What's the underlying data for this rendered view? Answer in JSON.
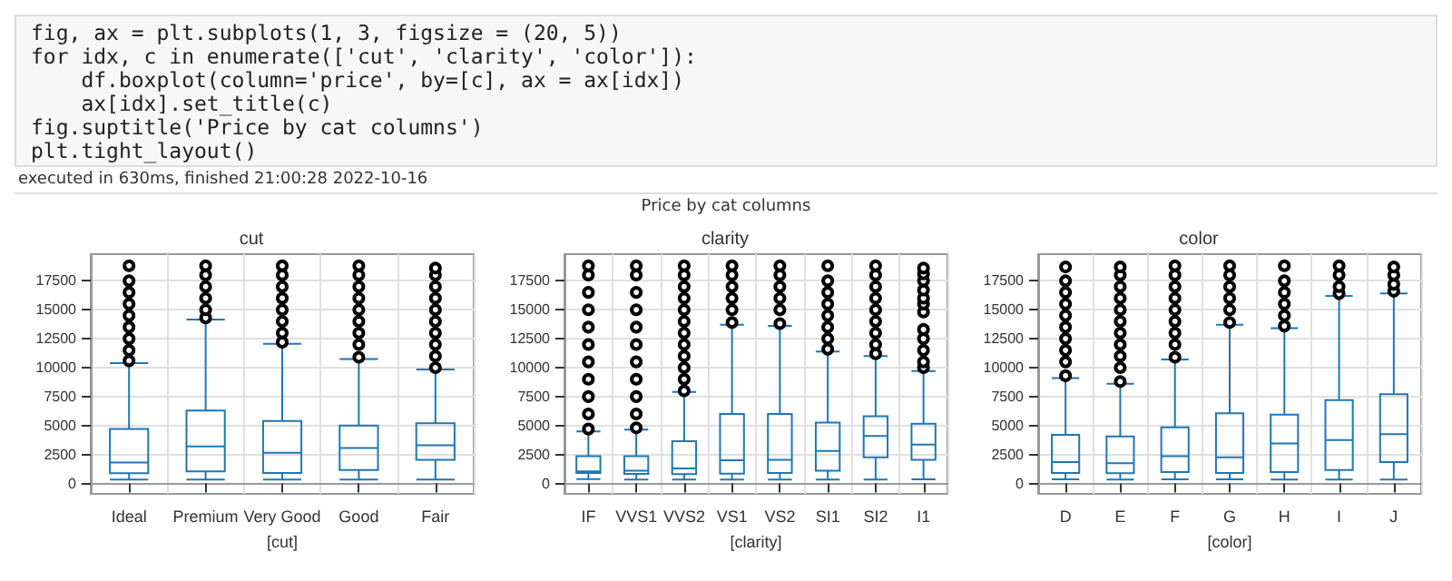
{
  "chart_data": [
    {
      "type": "other",
      "title": "Price by cat columns",
      "annotations": [
        "fig, ax = plt.subplots(1, 3, figsize = (20, 5))",
        "for idx, c in enumerate(['cut', 'clarity', 'color']):",
        "    df.boxplot(column='price', by=[c], ax = ax[idx])",
        "    ax[idx].set_title(c)",
        "fig.suptitle('Price by cat columns')",
        "plt.tight_layout()",
        "executed in 630ms, finished 21:00:28 2022-10-16"
      ]
    },
    {
      "type": "box",
      "title": "cut",
      "xlabel": "[cut]",
      "categories": [
        "Ideal",
        "Premium",
        "Very Good",
        "Good",
        "Fair"
      ],
      "ylim": [
        -900,
        19800
      ],
      "yticks": [
        0,
        2500,
        5000,
        7500,
        10000,
        12500,
        15000,
        17500
      ],
      "grid": true,
      "series": [
        {
          "color": "#1f77b4",
          "boxes": [
            {
              "low": 330,
              "q1": 880,
              "median": 1800,
              "q3": 4700,
              "high": 10400,
              "outliers": [
                10600,
                11500,
                12500,
                13500,
                14500,
                15500,
                16500,
                17500,
                18800
              ]
            },
            {
              "low": 330,
              "q1": 1050,
              "median": 3200,
              "q3": 6300,
              "high": 14150,
              "outliers": [
                14300,
                15000,
                16000,
                17000,
                18000,
                18800
              ]
            },
            {
              "low": 340,
              "q1": 900,
              "median": 2650,
              "q3": 5400,
              "high": 12050,
              "outliers": [
                12200,
                13000,
                14000,
                15000,
                16000,
                17000,
                18000,
                18800
              ]
            },
            {
              "low": 330,
              "q1": 1150,
              "median": 3050,
              "q3": 5000,
              "high": 10750,
              "outliers": [
                10900,
                12000,
                13000,
                14000,
                15000,
                16000,
                17000,
                18000,
                18800
              ]
            },
            {
              "low": 340,
              "q1": 2050,
              "median": 3300,
              "q3": 5200,
              "high": 9850,
              "outliers": [
                10000,
                11000,
                12000,
                13000,
                14000,
                15000,
                16000,
                17000,
                18000,
                18600
              ]
            }
          ]
        }
      ]
    },
    {
      "type": "box",
      "title": "clarity",
      "xlabel": "[clarity]",
      "categories": [
        "IF",
        "VVS1",
        "VVS2",
        "VS1",
        "VS2",
        "SI1",
        "SI2",
        "I1"
      ],
      "ylim": [
        -900,
        19800
      ],
      "yticks": [
        0,
        2500,
        5000,
        7500,
        10000,
        12500,
        15000,
        17500
      ],
      "grid": true,
      "series": [
        {
          "color": "#1f77b4",
          "boxes": [
            {
              "low": 370,
              "q1": 900,
              "median": 1050,
              "q3": 2350,
              "high": 4500,
              "outliers": [
                4700,
                6000,
                7500,
                9000,
                10500,
                12000,
                13500,
                15000,
                16500,
                18000,
                18800
              ]
            },
            {
              "low": 340,
              "q1": 820,
              "median": 1100,
              "q3": 2350,
              "high": 4650,
              "outliers": [
                4800,
                6000,
                7500,
                9000,
                10500,
                12000,
                13500,
                15000,
                16500,
                18000,
                18800
              ]
            },
            {
              "low": 340,
              "q1": 800,
              "median": 1300,
              "q3": 3650,
              "high": 7900,
              "outliers": [
                8000,
                9000,
                10000,
                11000,
                12000,
                13000,
                14000,
                15000,
                16000,
                17000,
                18000,
                18800
              ]
            },
            {
              "low": 330,
              "q1": 850,
              "median": 2000,
              "q3": 6000,
              "high": 13700,
              "outliers": [
                13900,
                15000,
                16000,
                17000,
                18000,
                18800
              ]
            },
            {
              "low": 330,
              "q1": 900,
              "median": 2050,
              "q3": 6000,
              "high": 13600,
              "outliers": [
                13800,
                15000,
                16000,
                17000,
                18000,
                18800
              ]
            },
            {
              "low": 330,
              "q1": 1100,
              "median": 2800,
              "q3": 5250,
              "high": 11400,
              "outliers": [
                11600,
                12500,
                13500,
                14500,
                15500,
                16500,
                17500,
                18800
              ]
            },
            {
              "low": 330,
              "q1": 2250,
              "median": 4100,
              "q3": 5800,
              "high": 11000,
              "outliers": [
                11200,
                12000,
                13000,
                14000,
                15000,
                16000,
                17000,
                18000,
                18800
              ]
            },
            {
              "low": 350,
              "q1": 2050,
              "median": 3350,
              "q3": 5150,
              "high": 9700,
              "outliers": [
                10000,
                10500,
                11500,
                12500,
                13300,
                14800,
                15500,
                16000,
                16700,
                17500,
                18100,
                18600
              ]
            }
          ]
        }
      ]
    },
    {
      "type": "box",
      "title": "color",
      "xlabel": "[color]",
      "categories": [
        "D",
        "E",
        "F",
        "G",
        "H",
        "I",
        "J"
      ],
      "ylim": [
        -900,
        19800
      ],
      "yticks": [
        0,
        2500,
        5000,
        7500,
        10000,
        12500,
        15000,
        17500
      ],
      "grid": true,
      "series": [
        {
          "color": "#1f77b4",
          "boxes": [
            {
              "low": 360,
              "q1": 900,
              "median": 1850,
              "q3": 4200,
              "high": 9100,
              "outliers": [
                9300,
                10500,
                11500,
                12500,
                13500,
                14500,
                15500,
                16500,
                17500,
                18700
              ]
            },
            {
              "low": 330,
              "q1": 880,
              "median": 1750,
              "q3": 4050,
              "high": 8600,
              "outliers": [
                8800,
                10000,
                11000,
                12000,
                13000,
                14000,
                15000,
                16000,
                17000,
                18000,
                18700
              ]
            },
            {
              "low": 350,
              "q1": 980,
              "median": 2350,
              "q3": 4850,
              "high": 10700,
              "outliers": [
                10900,
                12000,
                13000,
                14000,
                15000,
                16000,
                17000,
                18000,
                18800
              ]
            },
            {
              "low": 350,
              "q1": 900,
              "median": 2250,
              "q3": 6050,
              "high": 13700,
              "outliers": [
                13900,
                15000,
                16000,
                17000,
                18000,
                18800
              ]
            },
            {
              "low": 340,
              "q1": 980,
              "median": 3450,
              "q3": 5950,
              "high": 13400,
              "outliers": [
                13600,
                14500,
                15500,
                16500,
                17500,
                18800
              ]
            },
            {
              "low": 330,
              "q1": 1150,
              "median": 3750,
              "q3": 7200,
              "high": 16200,
              "outliers": [
                16400,
                17000,
                18000,
                18800
              ]
            },
            {
              "low": 330,
              "q1": 1850,
              "median": 4250,
              "q3": 7700,
              "high": 16400,
              "outliers": [
                16600,
                17200,
                18000,
                18700
              ]
            }
          ]
        }
      ]
    }
  ]
}
